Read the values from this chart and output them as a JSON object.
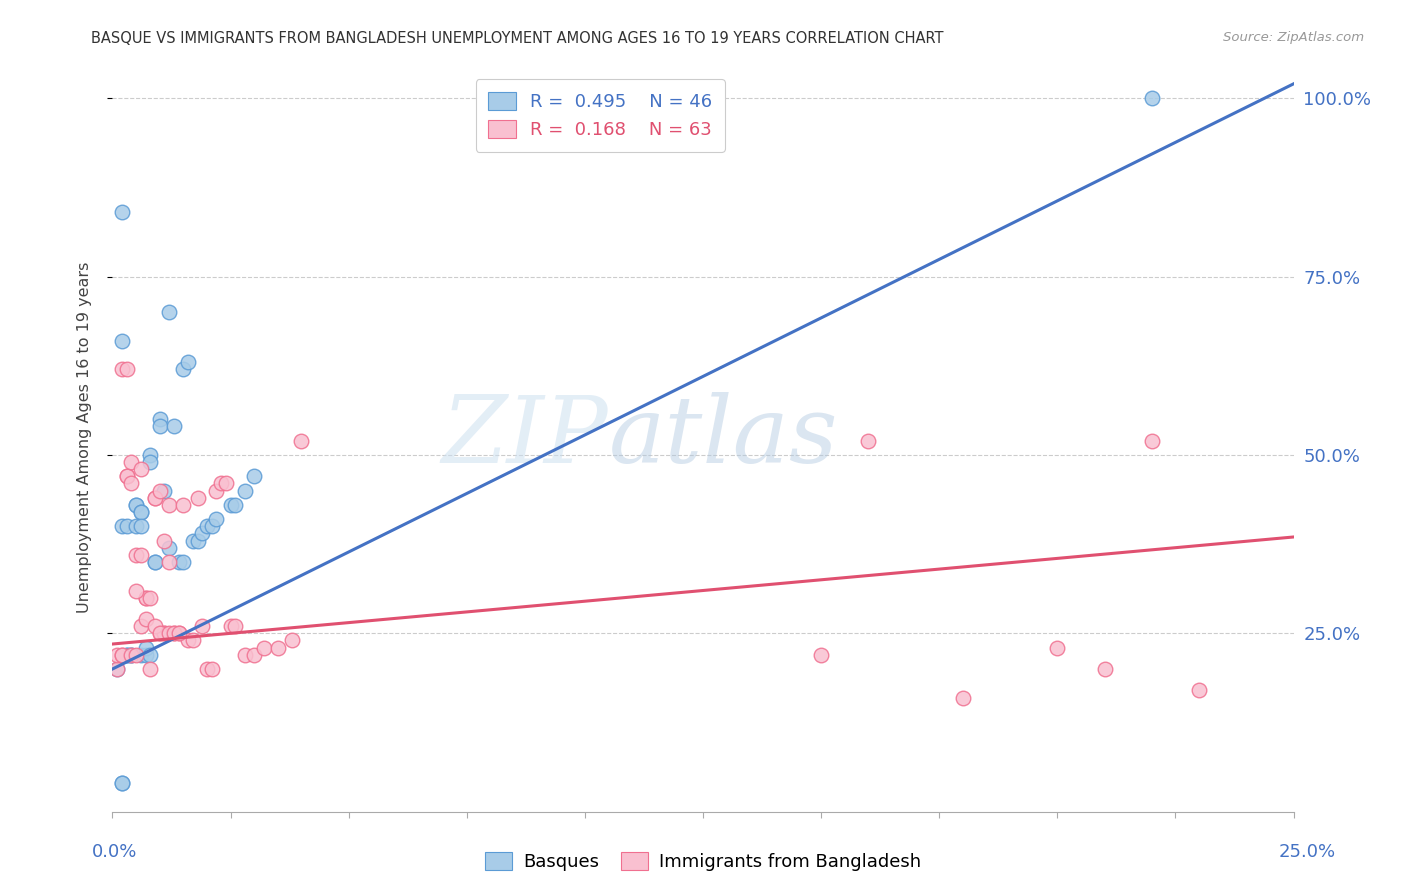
{
  "title": "BASQUE VS IMMIGRANTS FROM BANGLADESH UNEMPLOYMENT AMONG AGES 16 TO 19 YEARS CORRELATION CHART",
  "source": "Source: ZipAtlas.com",
  "ylabel": "Unemployment Among Ages 16 to 19 years",
  "basque_color": "#a8cce8",
  "bangladesh_color": "#f9c0d0",
  "basque_edge_color": "#5b9bd5",
  "bangladesh_edge_color": "#f07090",
  "basque_line_color": "#4472c4",
  "bangladesh_line_color": "#e05070",
  "watermark_color": "#ddeef8",
  "watermark_color2": "#c8d8e8",
  "basque_R": "0.495",
  "basque_N": "46",
  "bangladesh_R": "0.168",
  "bangladesh_N": "63",
  "xlim": [
    0.0,
    0.25
  ],
  "ylim": [
    0.0,
    1.05
  ],
  "yticks": [
    0.25,
    0.5,
    0.75,
    1.0
  ],
  "ytick_labels": [
    "25.0%",
    "50.0%",
    "75.0%",
    "100.0%"
  ],
  "xtick_labels_shown": [
    "0.0%",
    "25.0%"
  ],
  "basque_line_x0": 0.0,
  "basque_line_y0": 0.2,
  "basque_line_x1": 0.25,
  "basque_line_y1": 1.02,
  "bangladesh_line_x0": 0.0,
  "bangladesh_line_y0": 0.235,
  "bangladesh_line_x1": 0.25,
  "bangladesh_line_y1": 0.385,
  "basque_x": [
    0.001,
    0.002,
    0.002,
    0.003,
    0.003,
    0.004,
    0.004,
    0.005,
    0.005,
    0.006,
    0.006,
    0.006,
    0.007,
    0.007,
    0.008,
    0.008,
    0.008,
    0.009,
    0.009,
    0.01,
    0.01,
    0.011,
    0.012,
    0.012,
    0.013,
    0.014,
    0.015,
    0.015,
    0.016,
    0.017,
    0.018,
    0.019,
    0.02,
    0.021,
    0.022,
    0.025,
    0.026,
    0.028,
    0.03,
    0.002,
    0.002,
    0.003,
    0.005,
    0.006,
    0.22,
    0.002
  ],
  "basque_y": [
    0.2,
    0.04,
    0.04,
    0.22,
    0.22,
    0.22,
    0.22,
    0.43,
    0.43,
    0.42,
    0.42,
    0.22,
    0.22,
    0.23,
    0.5,
    0.49,
    0.22,
    0.35,
    0.35,
    0.55,
    0.54,
    0.45,
    0.7,
    0.37,
    0.54,
    0.35,
    0.62,
    0.35,
    0.63,
    0.38,
    0.38,
    0.39,
    0.4,
    0.4,
    0.41,
    0.43,
    0.43,
    0.45,
    0.47,
    0.84,
    0.4,
    0.4,
    0.4,
    0.4,
    1.0,
    0.66
  ],
  "bangladesh_x": [
    0.001,
    0.001,
    0.002,
    0.002,
    0.003,
    0.003,
    0.004,
    0.004,
    0.005,
    0.005,
    0.006,
    0.006,
    0.007,
    0.007,
    0.008,
    0.009,
    0.009,
    0.01,
    0.01,
    0.011,
    0.011,
    0.012,
    0.012,
    0.013,
    0.014,
    0.015,
    0.016,
    0.017,
    0.018,
    0.019,
    0.02,
    0.021,
    0.022,
    0.023,
    0.024,
    0.025,
    0.026,
    0.028,
    0.03,
    0.032,
    0.035,
    0.038,
    0.04,
    0.15,
    0.16,
    0.18,
    0.2,
    0.21,
    0.22,
    0.23,
    0.002,
    0.003,
    0.004,
    0.005,
    0.006,
    0.007,
    0.008,
    0.009,
    0.01,
    0.011,
    0.012,
    0.013,
    0.014
  ],
  "bangladesh_y": [
    0.2,
    0.22,
    0.22,
    0.22,
    0.47,
    0.47,
    0.49,
    0.22,
    0.22,
    0.36,
    0.36,
    0.48,
    0.3,
    0.3,
    0.3,
    0.44,
    0.44,
    0.45,
    0.25,
    0.25,
    0.25,
    0.43,
    0.35,
    0.25,
    0.25,
    0.43,
    0.24,
    0.24,
    0.44,
    0.26,
    0.2,
    0.2,
    0.45,
    0.46,
    0.46,
    0.26,
    0.26,
    0.22,
    0.22,
    0.23,
    0.23,
    0.24,
    0.52,
    0.22,
    0.52,
    0.16,
    0.23,
    0.2,
    0.52,
    0.17,
    0.62,
    0.62,
    0.46,
    0.31,
    0.26,
    0.27,
    0.2,
    0.26,
    0.25,
    0.38,
    0.25,
    0.25,
    0.25
  ]
}
